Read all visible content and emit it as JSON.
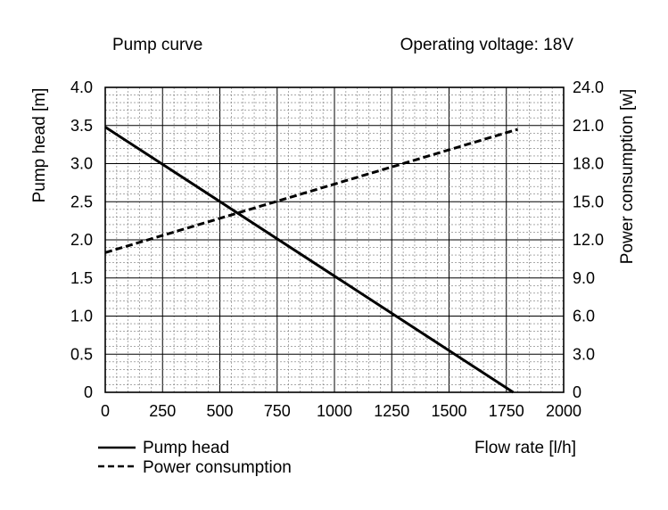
{
  "chart_data": {
    "type": "line",
    "title": "Pump curve",
    "subtitle": "Operating voltage: 18V",
    "xlabel": "Flow rate [l/h]",
    "ylabel_left": "Pump head [m]",
    "ylabel_right": "Power consumption [w]",
    "xlim": [
      0,
      2000
    ],
    "ylim_left": [
      0,
      4.0
    ],
    "ylim_right": [
      0,
      24.0
    ],
    "x_ticks": [
      "0",
      "250",
      "500",
      "750",
      "1000",
      "1250",
      "1500",
      "1750",
      "2000"
    ],
    "y_left_ticks": [
      "0",
      "0.5",
      "1.0",
      "1.5",
      "2.0",
      "2.5",
      "3.0",
      "3.5",
      "4.0"
    ],
    "y_right_ticks": [
      "0",
      "3.0",
      "6.0",
      "9.0",
      "12.0",
      "15.0",
      "18.0",
      "21.0",
      "24.0"
    ],
    "grid": true,
    "legend_position": "bottom-left",
    "series": [
      {
        "name": "Pump head",
        "axis": "left",
        "style": "solid",
        "x": [
          0,
          1780
        ],
        "y": [
          3.48,
          0
        ]
      },
      {
        "name": "Power consumption",
        "axis": "right",
        "style": "dashed",
        "x": [
          0,
          1800
        ],
        "y": [
          11.0,
          20.7
        ]
      }
    ]
  },
  "colors": {
    "line": "#000000",
    "grid_major": "#000000",
    "grid_minor": "#777777"
  }
}
